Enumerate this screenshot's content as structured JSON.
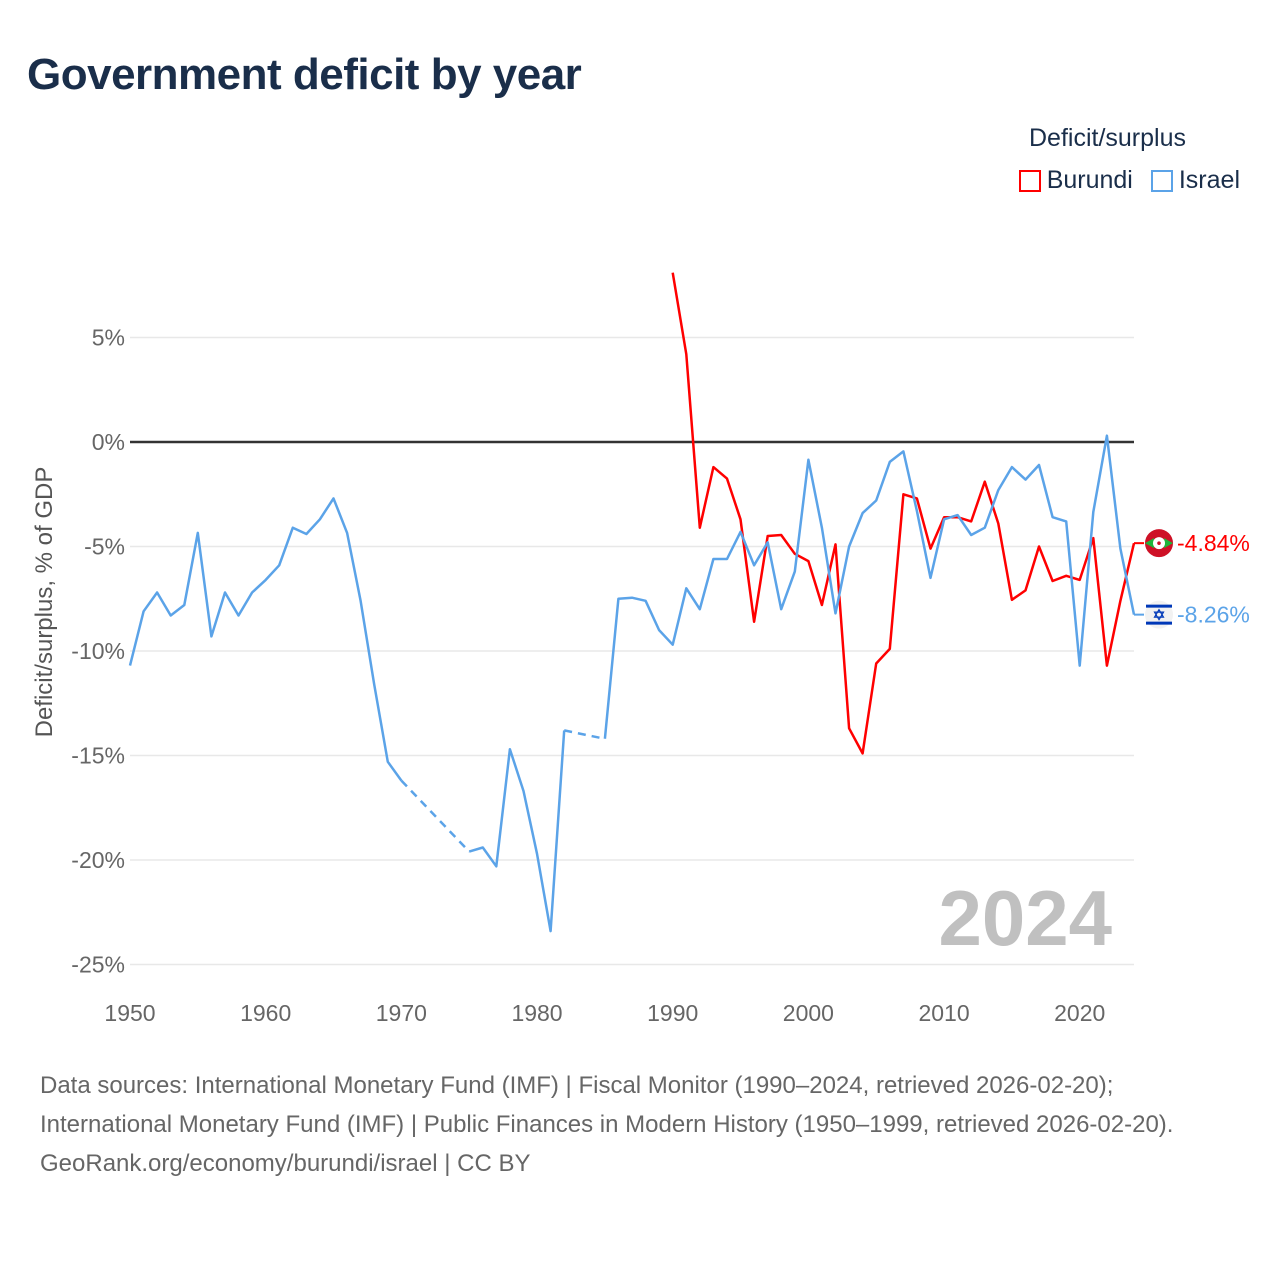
{
  "title": "Government deficit by year",
  "legend": {
    "title": "Deficit/surplus",
    "items": [
      {
        "name": "Burundi",
        "color": "#ff0000"
      },
      {
        "name": "Israel",
        "color": "#5ba3e8"
      }
    ]
  },
  "chart_data": {
    "type": "line",
    "title": "Government deficit by year",
    "xlabel": "",
    "ylabel": "Deficit/surplus, % of GDP",
    "xlim": [
      1950,
      2024
    ],
    "ylim": [
      -25,
      5
    ],
    "xticks": [
      "1950",
      "1960",
      "1970",
      "1980",
      "1990",
      "2000",
      "2010",
      "2020"
    ],
    "yticks": [
      {
        "v": 5,
        "label": "5%"
      },
      {
        "v": 0,
        "label": "0%"
      },
      {
        "v": -5,
        "label": "-5%"
      },
      {
        "v": -10,
        "label": "-10%"
      },
      {
        "v": -15,
        "label": "-15%"
      },
      {
        "v": -20,
        "label": "-20%"
      },
      {
        "v": -25,
        "label": "-25%"
      }
    ],
    "grid": true,
    "watermark_year": "2024",
    "series": [
      {
        "name": "Burundi",
        "color": "#ff0000",
        "end_label": "-4.84%",
        "x": [
          1990,
          1991,
          1992,
          1993,
          1994,
          1995,
          1996,
          1997,
          1998,
          1999,
          2000,
          2001,
          2002,
          2003,
          2004,
          2005,
          2006,
          2007,
          2008,
          2009,
          2010,
          2011,
          2012,
          2013,
          2014,
          2015,
          2016,
          2017,
          2018,
          2019,
          2020,
          2021,
          2022,
          2023,
          2024
        ],
        "y": [
          8.1,
          4.2,
          -4.1,
          -1.2,
          -1.75,
          -3.7,
          -8.6,
          -4.5,
          -4.45,
          -5.35,
          -5.7,
          -7.8,
          -4.9,
          -13.7,
          -14.9,
          -10.6,
          -9.9,
          -2.5,
          -2.7,
          -5.1,
          -3.6,
          -3.6,
          -3.8,
          -1.9,
          -3.9,
          -7.55,
          -7.1,
          -5.0,
          -6.65,
          -6.4,
          -6.6,
          -4.6,
          -10.7,
          -7.6,
          -4.84
        ]
      },
      {
        "name": "Israel",
        "color": "#5ba3e8",
        "end_label": "-8.26%",
        "x": [
          1950,
          1951,
          1952,
          1953,
          1954,
          1955,
          1956,
          1957,
          1958,
          1959,
          1960,
          1961,
          1962,
          1963,
          1964,
          1965,
          1966,
          1967,
          1968,
          1969,
          1970,
          1975,
          1976,
          1977,
          1978,
          1979,
          1980,
          1981,
          1982,
          1985,
          1986,
          1987,
          1988,
          1989,
          1990,
          1991,
          1992,
          1993,
          1994,
          1995,
          1996,
          1997,
          1998,
          1999,
          2000,
          2001,
          2002,
          2003,
          2004,
          2005,
          2006,
          2007,
          2008,
          2009,
          2010,
          2011,
          2012,
          2013,
          2014,
          2015,
          2016,
          2017,
          2018,
          2019,
          2020,
          2021,
          2022,
          2023,
          2024
        ],
        "y": [
          -10.7,
          -8.1,
          -7.2,
          -8.3,
          -7.8,
          -4.35,
          -9.3,
          -7.2,
          -8.3,
          -7.2,
          -6.6,
          -5.9,
          -4.1,
          -4.4,
          -3.7,
          -2.7,
          -4.35,
          -7.6,
          -11.6,
          -15.3,
          -16.2,
          -19.6,
          -19.4,
          -20.3,
          -14.7,
          -16.7,
          -19.7,
          -23.4,
          -13.8,
          -14.2,
          -7.5,
          -7.45,
          -7.6,
          -9.0,
          -9.7,
          -7.0,
          -8.0,
          -5.6,
          -5.6,
          -4.3,
          -5.9,
          -4.8,
          -8.0,
          -6.2,
          -0.85,
          -4.1,
          -8.2,
          -5.0,
          -3.4,
          -2.8,
          -0.95,
          -0.45,
          -3.3,
          -6.5,
          -3.7,
          -3.5,
          -4.45,
          -4.1,
          -2.3,
          -1.2,
          -1.8,
          -1.1,
          -3.6,
          -3.8,
          -10.7,
          -3.35,
          0.3,
          -5.1,
          -8.26
        ]
      }
    ]
  },
  "footer": {
    "sources": "Data sources: International Monetary Fund (IMF) | Fiscal Monitor (1990–2024, retrieved 2026-02-20); International Monetary Fund (IMF) | Public Finances in Modern History (1950–1999, retrieved 2026-02-20).",
    "credit": "GeoRank.org/economy/burundi/israel | CC BY"
  }
}
